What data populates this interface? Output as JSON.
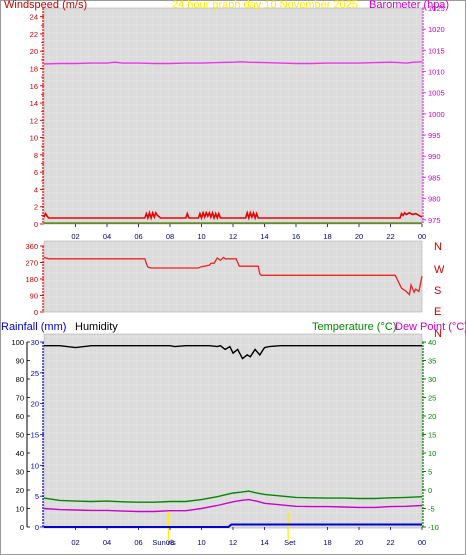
{
  "colors": {
    "wind": "#ff0000",
    "gust": "#ee0000",
    "baro": "#ee33ee",
    "graphdate": "#ffee00",
    "winddir": "#ee2222",
    "compass": "#cc0000",
    "rain": "#0000cc",
    "humidity": "#000000",
    "temp": "#008800",
    "dew": "#cc00cc",
    "time_labels": "#000088",
    "panel_bg": "#d8d8d8"
  },
  "chart_data": [
    {
      "type": "line",
      "panel": "wind-baro",
      "title": "24 hour graph day   10 November 2025",
      "left_label": "Windspeed (m/s)",
      "right_label": "Barometer (hpa)",
      "left_ticks": [
        "0",
        "2",
        "4",
        "6",
        "8",
        "10",
        "12",
        "14",
        "16",
        "18",
        "20",
        "22",
        "24"
      ],
      "right_ticks": [
        "975",
        "980",
        "985",
        "990",
        "995",
        "1000",
        "1005",
        "1010",
        "1015",
        "1020",
        "1025"
      ],
      "ylim_left": [
        0,
        25
      ],
      "ylim_right": [
        974,
        1025
      ],
      "x_ticks": [
        "02",
        "04",
        "06",
        "08",
        "10",
        "12",
        "14",
        "16",
        "18",
        "20",
        "22",
        "00"
      ],
      "series": [
        {
          "name": "Barometer",
          "axis": "right",
          "color_key": "baro",
          "x": [
            0,
            1,
            2,
            3,
            4,
            4.5,
            5,
            6,
            7,
            8,
            9,
            10,
            11,
            12,
            12.5,
            13,
            14,
            15,
            16,
            17,
            18,
            19,
            20,
            21,
            22,
            22.5,
            23,
            23.5,
            24
          ],
          "y": [
            1011.8,
            1011.9,
            1011.9,
            1012,
            1012,
            1012.2,
            1012,
            1012,
            1011.9,
            1011.9,
            1012,
            1012,
            1012.1,
            1012.2,
            1012.3,
            1012.2,
            1012.1,
            1012,
            1011.9,
            1011.9,
            1012,
            1012,
            1012,
            1012.1,
            1012.2,
            1012.1,
            1012,
            1012.2,
            1012.3
          ]
        },
        {
          "name": "Wind gust",
          "axis": "left",
          "color_key": "gust",
          "x": [
            0,
            0.1,
            0.2,
            0.3,
            0.5,
            6.4,
            6.5,
            6.6,
            6.7,
            6.8,
            6.9,
            7,
            7.1,
            7.2,
            7.4,
            9,
            9.1,
            9.2,
            9.3,
            9.5,
            9.8,
            9.9,
            10,
            10.1,
            10.2,
            10.3,
            10.4,
            10.5,
            10.6,
            10.7,
            10.8,
            10.9,
            11,
            11.1,
            11.2,
            11.3,
            11.5,
            12.8,
            12.9,
            13,
            13.1,
            13.2,
            13.3,
            13.4,
            13.5,
            13.6,
            13.8,
            22.6,
            22.7,
            22.8,
            22.9,
            23,
            23.2,
            23.4,
            23.6,
            23.8,
            24
          ],
          "y": [
            0.8,
            1.2,
            0.9,
            0.7,
            0.7,
            0.7,
            1.2,
            0.7,
            1.3,
            0.7,
            1.3,
            0.8,
            1.3,
            1.0,
            0.7,
            0.7,
            1.2,
            0.7,
            0.7,
            0.7,
            0.7,
            1.2,
            0.7,
            1.3,
            0.8,
            1.3,
            0.9,
            1.3,
            0.8,
            1.3,
            0.7,
            1.2,
            0.7,
            1.2,
            0.7,
            0.7,
            0.7,
            0.7,
            1.3,
            0.7,
            1.3,
            0.8,
            1.3,
            0.7,
            1.2,
            0.7,
            0.7,
            0.7,
            1.2,
            1.0,
            1.3,
            1.1,
            1.3,
            1.1,
            1.2,
            1.0,
            0.8
          ]
        },
        {
          "name": "Wind average",
          "axis": "left",
          "color_key": "wind",
          "x": [
            0,
            24
          ],
          "y": [
            0.1,
            0.1
          ]
        }
      ]
    },
    {
      "type": "line",
      "panel": "wind-direction",
      "left_ticks": [
        "0",
        "90",
        "180",
        "270",
        "360"
      ],
      "ylim": [
        0,
        360
      ],
      "compass": [
        "N",
        "W",
        "S",
        "E",
        "N"
      ],
      "series": [
        {
          "name": "Wind direction",
          "color_key": "winddir",
          "x": [
            0,
            0.3,
            6.4,
            6.5,
            6.6,
            6.8,
            9.8,
            10,
            10.2,
            10.4,
            10.5,
            10.6,
            10.8,
            11,
            11.2,
            11.4,
            11.5,
            12.2,
            12.4,
            13.6,
            13.7,
            13.8,
            22.3,
            22.5,
            22.7,
            23,
            23.2,
            23.3,
            23.5,
            23.6,
            23.8,
            24
          ],
          "y": [
            298,
            290,
            290,
            264,
            245,
            240,
            240,
            247,
            250,
            254,
            254,
            265,
            266,
            295,
            282,
            298,
            290,
            290,
            250,
            250,
            208,
            200,
            200,
            165,
            130,
            112,
            95,
            148,
            108,
            125,
            112,
            196
          ]
        }
      ]
    },
    {
      "type": "line",
      "panel": "rain-hum-temp",
      "left_label": "Rainfall (mm)",
      "left2_label": "Humidity",
      "right_label_temp": "Temperature (°C)",
      "right_label_dew": "Dew Point (°C)",
      "rain_ticks": [
        "0",
        "5",
        "10",
        "15",
        "20",
        "25",
        "30"
      ],
      "hum_ticks": [
        "0",
        "10",
        "20",
        "30",
        "40",
        "50",
        "60",
        "70",
        "80",
        "90",
        "100"
      ],
      "temp_ticks": [
        "-10",
        "-5",
        "0",
        "5",
        "10",
        "15",
        "20",
        "25",
        "30",
        "35",
        "40"
      ],
      "ylim_rain": [
        0,
        30
      ],
      "ylim_hum": [
        0,
        100
      ],
      "ylim_temp": [
        -10,
        40
      ],
      "x_ticks": [
        "02",
        "04",
        "06",
        "08",
        "10",
        "12",
        "14",
        "16",
        "18",
        "20",
        "22",
        "00"
      ],
      "sun_labels": [
        "Sun ris",
        "Set"
      ],
      "sun_x": [
        7.9,
        15.5
      ],
      "series": [
        {
          "name": "Humidity",
          "axis": "hum",
          "color_key": "humidity",
          "x": [
            0,
            1,
            2,
            3,
            4,
            5,
            6,
            7,
            8,
            8.3,
            9,
            10,
            10.5,
            11,
            11.2,
            11.5,
            11.8,
            12,
            12.3,
            12.6,
            12.9,
            13.1,
            13.4,
            13.7,
            14,
            14.3,
            15,
            16,
            17,
            18,
            19,
            20,
            21,
            22,
            23,
            24
          ],
          "y": [
            98,
            98,
            97,
            98,
            98,
            98,
            98,
            98,
            98,
            97.5,
            98,
            98,
            98,
            97.5,
            98,
            96,
            97.5,
            94,
            96,
            91,
            93,
            92,
            96,
            93,
            97,
            97.5,
            98,
            98,
            98,
            98,
            98,
            98,
            98,
            98,
            98,
            98
          ]
        },
        {
          "name": "Temperature",
          "axis": "temp",
          "color_key": "temp",
          "x": [
            0,
            1,
            2,
            3,
            4,
            5,
            6,
            7,
            8,
            9,
            10,
            11,
            12,
            12.5,
            13,
            13.5,
            14,
            15,
            16,
            17,
            18,
            19,
            20,
            21,
            22,
            23,
            24
          ],
          "y": [
            -2.2,
            -2.8,
            -3,
            -3.1,
            -3,
            -3.2,
            -3.3,
            -3.3,
            -3.1,
            -3.1,
            -2.6,
            -1.8,
            -0.8,
            -0.6,
            -0.3,
            -0.8,
            -1.2,
            -1.6,
            -2,
            -2.1,
            -2.2,
            -2.2,
            -2.3,
            -2.3,
            -2.1,
            -2,
            -1.8
          ]
        },
        {
          "name": "Dew point",
          "axis": "temp",
          "color_key": "dew",
          "x": [
            0,
            1,
            2,
            3,
            4,
            5,
            6,
            7,
            8,
            9,
            10,
            11,
            12,
            12.5,
            13,
            13.5,
            14,
            15,
            16,
            17,
            18,
            19,
            20,
            21,
            22,
            23,
            24
          ],
          "y": [
            -5,
            -5.3,
            -5.4,
            -5.5,
            -5.5,
            -5.7,
            -5.8,
            -5.8,
            -5.6,
            -5.6,
            -5,
            -4.2,
            -3.2,
            -2.8,
            -2.6,
            -3,
            -3.6,
            -4,
            -4.4,
            -4.5,
            -4.5,
            -4.6,
            -4.7,
            -4.7,
            -4.5,
            -4.4,
            -4.2
          ]
        },
        {
          "name": "Rainfall",
          "axis": "rain",
          "color_key": "rain",
          "x": [
            0,
            11.7,
            11.9,
            24
          ],
          "y": [
            0,
            0,
            0.4,
            0.4
          ]
        }
      ]
    }
  ]
}
